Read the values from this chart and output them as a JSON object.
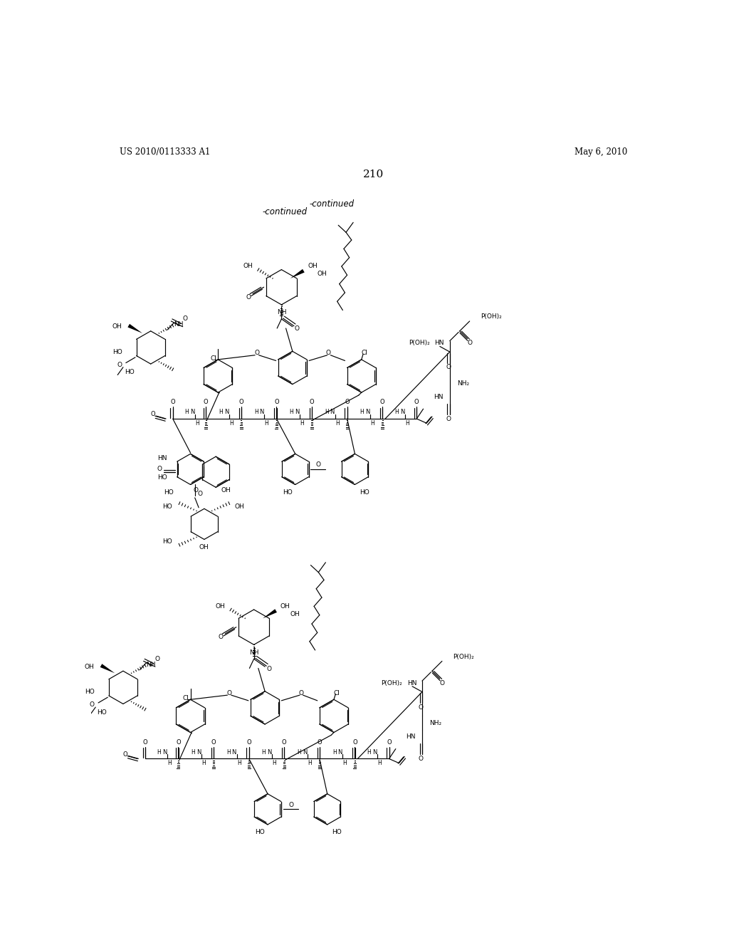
{
  "page_header_left": "US 2010/0113333 A1",
  "page_header_right": "May 6, 2010",
  "page_number": "210",
  "continued_label": "-continued",
  "background_color": "#ffffff",
  "text_color": "#000000",
  "fig_width": 10.24,
  "fig_height": 13.2,
  "dpi": 100
}
